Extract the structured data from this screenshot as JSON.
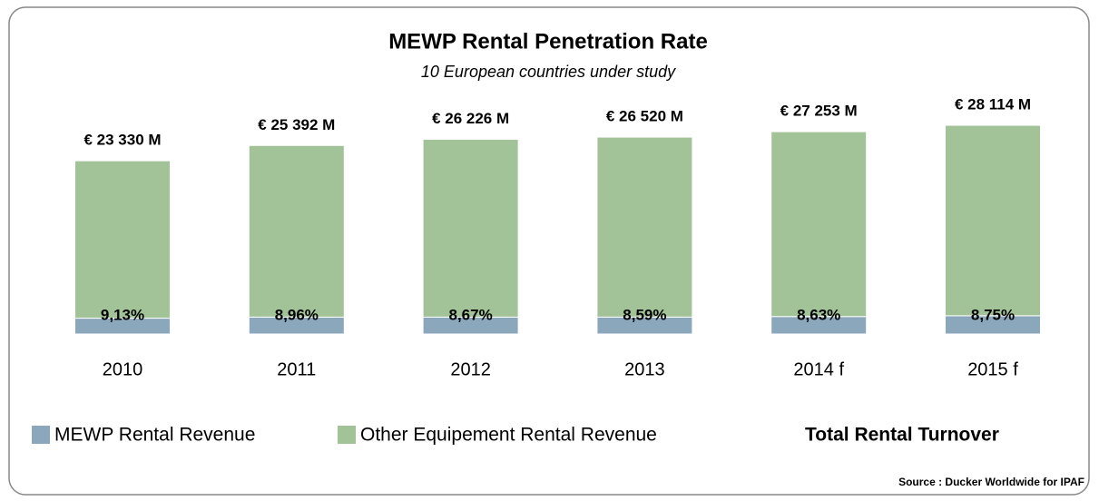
{
  "chart_data": {
    "type": "stacked_bar",
    "title": "MEWP Rental Penetration Rate",
    "subtitle": "10 European countries under study",
    "categories": [
      "2010",
      "2011",
      "2012",
      "2013",
      "2014 f",
      "2015 f"
    ],
    "series": [
      {
        "name": "MEWP Rental Revenue",
        "color": "#8ba7bc",
        "values": [
          2130,
          2275,
          2274,
          2278,
          2352,
          2460
        ]
      },
      {
        "name": "Other Equipement Rental Revenue",
        "color": "#a2c397",
        "values": [
          21200,
          23117,
          23952,
          24242,
          24901,
          25654
        ]
      }
    ],
    "shares": {
      "values": [
        9.13,
        8.96,
        8.67,
        8.59,
        8.63,
        8.75
      ],
      "value_labels": [
        "9,13%",
        "8,96%",
        "8,67%",
        "8,59%",
        "8,63%",
        "8,75%"
      ]
    },
    "totals": {
      "name": "Total Rental Turnover",
      "values": [
        23330,
        25392,
        26226,
        26520,
        27253,
        28114
      ],
      "value_labels": [
        "€ 23 330 M",
        "€ 25 392 M",
        "€ 26 226 M",
        "€ 26 520 M",
        "€ 27 253 M",
        "€ 28 114 M"
      ]
    },
    "source": "Source : Ducker Worldwide for IPAF"
  }
}
